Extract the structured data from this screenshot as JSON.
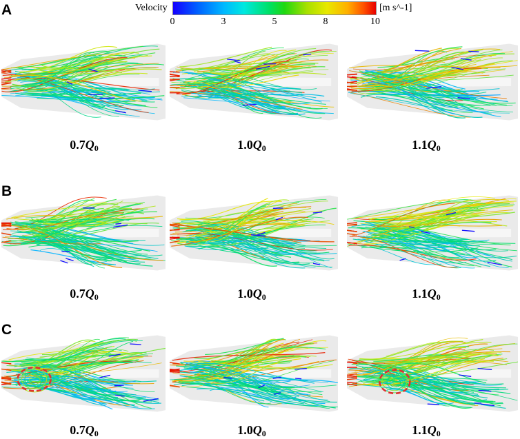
{
  "colorbar": {
    "title": "Velocity",
    "unit": "[m s^-1]",
    "ticks": [
      "0",
      "3",
      "5",
      "8",
      "10"
    ],
    "tick_values": [
      0,
      3,
      5,
      8,
      10
    ],
    "range": [
      0,
      10
    ],
    "colors": [
      "#1400ff",
      "#00b8ff",
      "#00e060",
      "#e8e800",
      "#e80000"
    ]
  },
  "rows": [
    {
      "label": "A",
      "panels": [
        {
          "coef": "0.7",
          "q": "Q",
          "sub": "0",
          "vortex": false
        },
        {
          "coef": "1.0",
          "q": "Q",
          "sub": "0",
          "vortex": false
        },
        {
          "coef": "1.1",
          "q": "Q",
          "sub": "0",
          "vortex": false
        }
      ]
    },
    {
      "label": "B",
      "panels": [
        {
          "coef": "0.7",
          "q": "Q",
          "sub": "0",
          "vortex": false
        },
        {
          "coef": "1.0",
          "q": "Q",
          "sub": "0",
          "vortex": false
        },
        {
          "coef": "1.1",
          "q": "Q",
          "sub": "0",
          "vortex": false
        }
      ]
    },
    {
      "label": "C",
      "panels": [
        {
          "coef": "0.7",
          "q": "Q",
          "sub": "0",
          "vortex": true
        },
        {
          "coef": "1.0",
          "q": "Q",
          "sub": "0",
          "vortex": false
        },
        {
          "coef": "1.1",
          "q": "Q",
          "sub": "0",
          "vortex": true
        }
      ]
    }
  ]
}
